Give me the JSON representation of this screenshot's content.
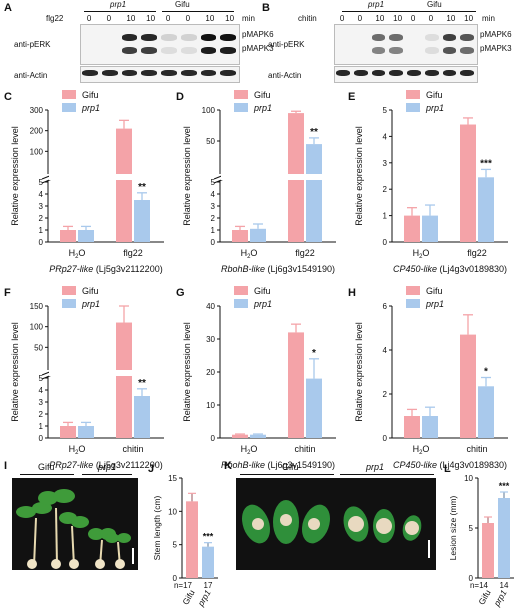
{
  "panels": {
    "A": {
      "letter": "A",
      "treatment_label": "flg22",
      "lanes": [
        "0",
        "0",
        "10",
        "10",
        "0",
        "0",
        "10",
        "10"
      ],
      "unit": "min",
      "groups": [
        "prp1",
        "Gifu"
      ],
      "row1_label": "anti-pERK",
      "row2_label": "anti-Actin",
      "bands": [
        "pMAPK6",
        "pMAPK3"
      ]
    },
    "B": {
      "letter": "B",
      "treatment_label": "chitin",
      "lanes": [
        "0",
        "0",
        "10",
        "10",
        "0",
        "0",
        "10",
        "10"
      ],
      "unit": "min",
      "groups": [
        "prp1",
        "Gifu"
      ],
      "row1_label": "anti-pERK",
      "row2_label": "anti-Actin",
      "bands": [
        "pMAPK6",
        "pMAPK3"
      ]
    },
    "I": {
      "letter": "I",
      "groups": [
        "Gifu",
        "prp1"
      ]
    },
    "K": {
      "letter": "K",
      "groups": [
        "Gifu",
        "prp1"
      ]
    }
  },
  "colors": {
    "gifu": "#f4a3a8",
    "prp1": "#a9c9ec"
  },
  "chart_data": [
    {
      "id": "C",
      "letter": "C",
      "type": "bar",
      "ylabel": "Relative expression level",
      "categories": [
        "H2O",
        "flg22"
      ],
      "gene": "PRp27-like",
      "gene_id": "(Lj5g3v2112200)",
      "legend": [
        "Gifu",
        "prp1"
      ],
      "series": [
        {
          "name": "Gifu",
          "values": [
            1.0,
            210
          ]
        },
        {
          "name": "prp1",
          "values": [
            1.0,
            3.5
          ]
        }
      ],
      "errors": [
        [
          0.3,
          40
        ],
        [
          0.3,
          0.6
        ]
      ],
      "broken": true,
      "lower_ticks": [
        "0",
        "1",
        "2",
        "3",
        "4",
        "5"
      ],
      "upper_ticks": [
        "100",
        "200",
        "300"
      ],
      "sig": [
        "",
        "**"
      ]
    },
    {
      "id": "D",
      "letter": "D",
      "type": "bar",
      "ylabel": "Relative expression level",
      "categories": [
        "H2O",
        "flg22"
      ],
      "gene": "RbohB-like",
      "gene_id": "(Lj6g3v1549190)",
      "legend": [
        "Gifu",
        "prp1"
      ],
      "series": [
        {
          "name": "Gifu",
          "values": [
            1.0,
            95
          ]
        },
        {
          "name": "prp1",
          "values": [
            1.1,
            45
          ]
        }
      ],
      "errors": [
        [
          0.3,
          3
        ],
        [
          0.4,
          10
        ]
      ],
      "broken": true,
      "lower_ticks": [
        "0",
        "1",
        "2",
        "3",
        "4",
        "5"
      ],
      "upper_ticks": [
        "50",
        "100"
      ],
      "sig": [
        "",
        "**"
      ]
    },
    {
      "id": "E",
      "letter": "E",
      "type": "bar",
      "ylabel": "Relative expression level",
      "categories": [
        "H2O",
        "flg22"
      ],
      "gene": "CP450-like",
      "gene_id": "(Lj4g3v0189830)",
      "legend": [
        "Gifu",
        "prp1"
      ],
      "series": [
        {
          "name": "Gifu",
          "values": [
            1.0,
            4.45
          ]
        },
        {
          "name": "prp1",
          "values": [
            1.0,
            2.45
          ]
        }
      ],
      "errors": [
        [
          0.3,
          0.25
        ],
        [
          0.4,
          0.3
        ]
      ],
      "broken": false,
      "ylim": [
        0,
        5
      ],
      "ticks": [
        "0",
        "1",
        "2",
        "3",
        "4",
        "5"
      ],
      "sig": [
        "",
        "***"
      ]
    },
    {
      "id": "F",
      "letter": "F",
      "type": "bar",
      "ylabel": "Relative expression level",
      "categories": [
        "H2O",
        "chitin"
      ],
      "gene": "PRp27-like",
      "gene_id": "(Lj5g3v2112200)",
      "legend": [
        "Gifu",
        "prp1"
      ],
      "series": [
        {
          "name": "Gifu",
          "values": [
            1.0,
            110
          ]
        },
        {
          "name": "prp1",
          "values": [
            1.0,
            3.5
          ]
        }
      ],
      "errors": [
        [
          0.3,
          40
        ],
        [
          0.3,
          0.6
        ]
      ],
      "broken": true,
      "lower_ticks": [
        "0",
        "1",
        "2",
        "3",
        "4",
        "5"
      ],
      "upper_ticks": [
        "50",
        "100",
        "150"
      ],
      "sig": [
        "",
        "**"
      ]
    },
    {
      "id": "G",
      "letter": "G",
      "type": "bar",
      "ylabel": "Relative expression level",
      "categories": [
        "H2O",
        "chitin"
      ],
      "gene": "RbohB-like",
      "gene_id": "(Lj6g3v1549190)",
      "legend": [
        "Gifu",
        "prp1"
      ],
      "series": [
        {
          "name": "Gifu",
          "values": [
            1.0,
            32
          ]
        },
        {
          "name": "prp1",
          "values": [
            1.0,
            18
          ]
        }
      ],
      "errors": [
        [
          0.2,
          2.5
        ],
        [
          0.2,
          6
        ]
      ],
      "broken": false,
      "ylim": [
        0,
        40
      ],
      "ticks": [
        "0",
        "10",
        "20",
        "30",
        "40"
      ],
      "sig": [
        "",
        "*"
      ]
    },
    {
      "id": "H",
      "letter": "H",
      "type": "bar",
      "ylabel": "Relative expression level",
      "categories": [
        "H2O",
        "chitin"
      ],
      "gene": "CP450-like",
      "gene_id": "(Lj4g3v0189830)",
      "legend": [
        "Gifu",
        "prp1"
      ],
      "series": [
        {
          "name": "Gifu",
          "values": [
            1.0,
            4.7
          ]
        },
        {
          "name": "prp1",
          "values": [
            1.0,
            2.35
          ]
        }
      ],
      "errors": [
        [
          0.3,
          0.9
        ],
        [
          0.4,
          0.4
        ]
      ],
      "broken": false,
      "ylim": [
        0,
        6
      ],
      "ticks": [
        "0",
        "2",
        "4",
        "6"
      ],
      "sig": [
        "",
        "*"
      ]
    },
    {
      "id": "J",
      "letter": "J",
      "type": "bar",
      "ylabel": "Stem length (cm)",
      "categories": [
        "Gifu",
        "prp1"
      ],
      "series": [
        {
          "name": "Stem length",
          "values": [
            11.5,
            4.7
          ]
        }
      ],
      "errors": [
        [
          1.2,
          0.6
        ]
      ],
      "ylim": [
        0,
        15
      ],
      "ticks": [
        "0",
        "5",
        "10",
        "15"
      ],
      "n": [
        "n=17",
        "17"
      ],
      "sig": [
        "",
        "***"
      ]
    },
    {
      "id": "L",
      "letter": "L",
      "type": "bar",
      "ylabel": "Lesion size (mm)",
      "categories": [
        "Gifu",
        "prp1"
      ],
      "series": [
        {
          "name": "Lesion size",
          "values": [
            5.5,
            8.0
          ]
        }
      ],
      "errors": [
        [
          0.6,
          0.6
        ]
      ],
      "ylim": [
        0,
        10
      ],
      "ticks": [
        "0",
        "5",
        "10"
      ],
      "n": [
        "n=14",
        "14"
      ],
      "sig": [
        "",
        "***"
      ]
    }
  ]
}
